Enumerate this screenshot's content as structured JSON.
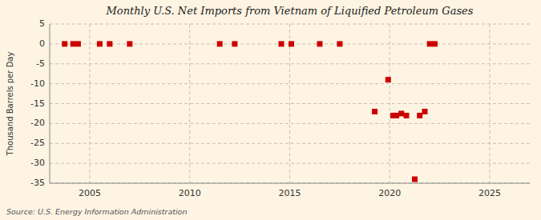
{
  "chart_data": {
    "type": "scatter",
    "title": "Monthly U.S. Net Imports from Vietnam of Liquified Petroleum Gases",
    "ylabel": "Thousand Barrels per Day",
    "annotation": "Source: U.S. Energy Information Administration",
    "x": [
      2003.75,
      2004.17,
      2004.42,
      2005.5,
      2006.0,
      2007.0,
      2011.5,
      2012.25,
      2014.58,
      2015.08,
      2016.5,
      2017.5,
      2019.25,
      2019.92,
      2020.17,
      2020.33,
      2020.58,
      2020.83,
      2021.25,
      2021.5,
      2021.75,
      2022.0,
      2022.25
    ],
    "values": [
      0,
      0,
      0,
      0,
      0,
      0,
      0,
      0,
      0,
      0,
      0,
      0,
      -17,
      -9,
      -18,
      -18,
      -17.5,
      -18,
      -34,
      -18,
      -17,
      0,
      0
    ],
    "color": "#cc0000",
    "marker": "square",
    "xlim": [
      2003.0,
      2027.0
    ],
    "ylim": [
      -35,
      5
    ],
    "xticks": [
      2005,
      2010,
      2015,
      2020,
      2025
    ],
    "yticks": [
      5,
      0,
      -5,
      -10,
      -15,
      -20,
      -25,
      -30,
      -35
    ],
    "grid": true
  }
}
